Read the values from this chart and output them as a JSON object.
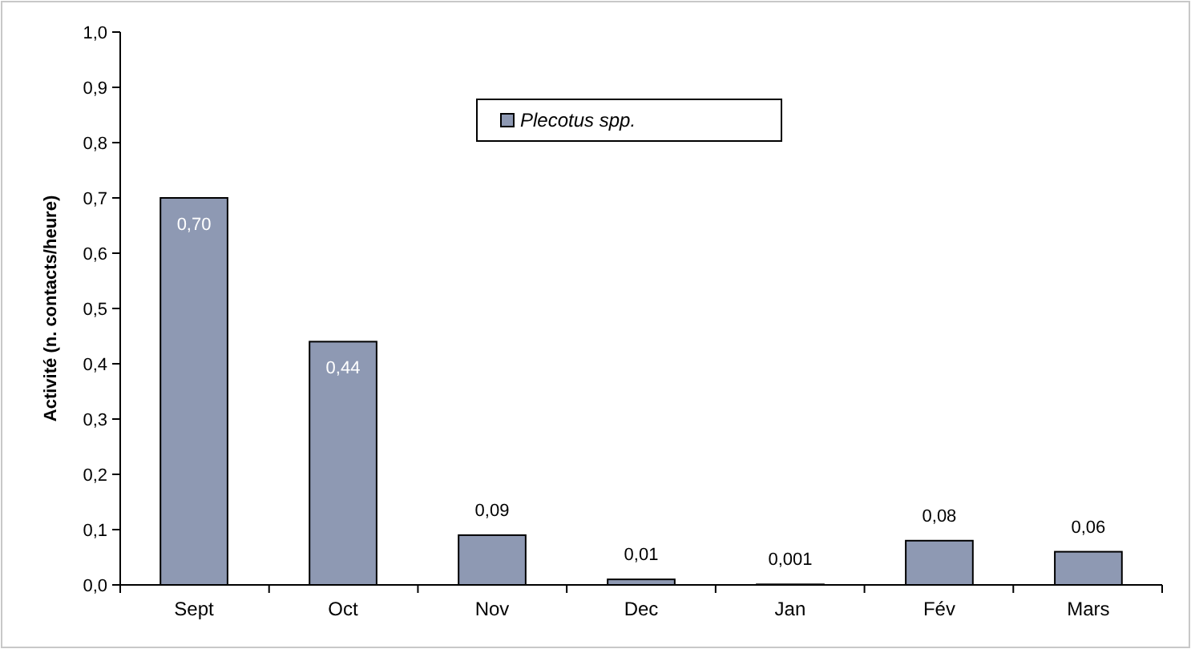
{
  "chart_data": {
    "type": "bar",
    "ylabel": "Activité (n. contacts/heure)",
    "categories": [
      "Sept",
      "Oct",
      "Nov",
      "Dec",
      "Jan",
      "Fév",
      "Mars"
    ],
    "series": [
      {
        "name": "Plecotus spp.",
        "color": "#8e99b3",
        "values": [
          0.7,
          0.44,
          0.09,
          0.01,
          0.001,
          0.08,
          0.06
        ],
        "value_labels": [
          "0,70",
          "0,44",
          "0,09",
          "0,01",
          "0,001",
          "0,08",
          "0,06"
        ]
      }
    ],
    "ylim": [
      0,
      1
    ],
    "yticks": [
      {
        "value": 0,
        "label": "0,0"
      },
      {
        "value": 0.1,
        "label": "0,1"
      },
      {
        "value": 0.2,
        "label": "0,2"
      },
      {
        "value": 0.3,
        "label": "0,3"
      },
      {
        "value": 0.4,
        "label": "0,4"
      },
      {
        "value": 0.5,
        "label": "0,5"
      },
      {
        "value": 0.6,
        "label": "0,6"
      },
      {
        "value": 0.7,
        "label": "0,7"
      },
      {
        "value": 0.8,
        "label": "0,8"
      },
      {
        "value": 0.9,
        "label": "0,9"
      },
      {
        "value": 1,
        "label": "1,0"
      }
    ],
    "grid": false,
    "legend": "top"
  }
}
